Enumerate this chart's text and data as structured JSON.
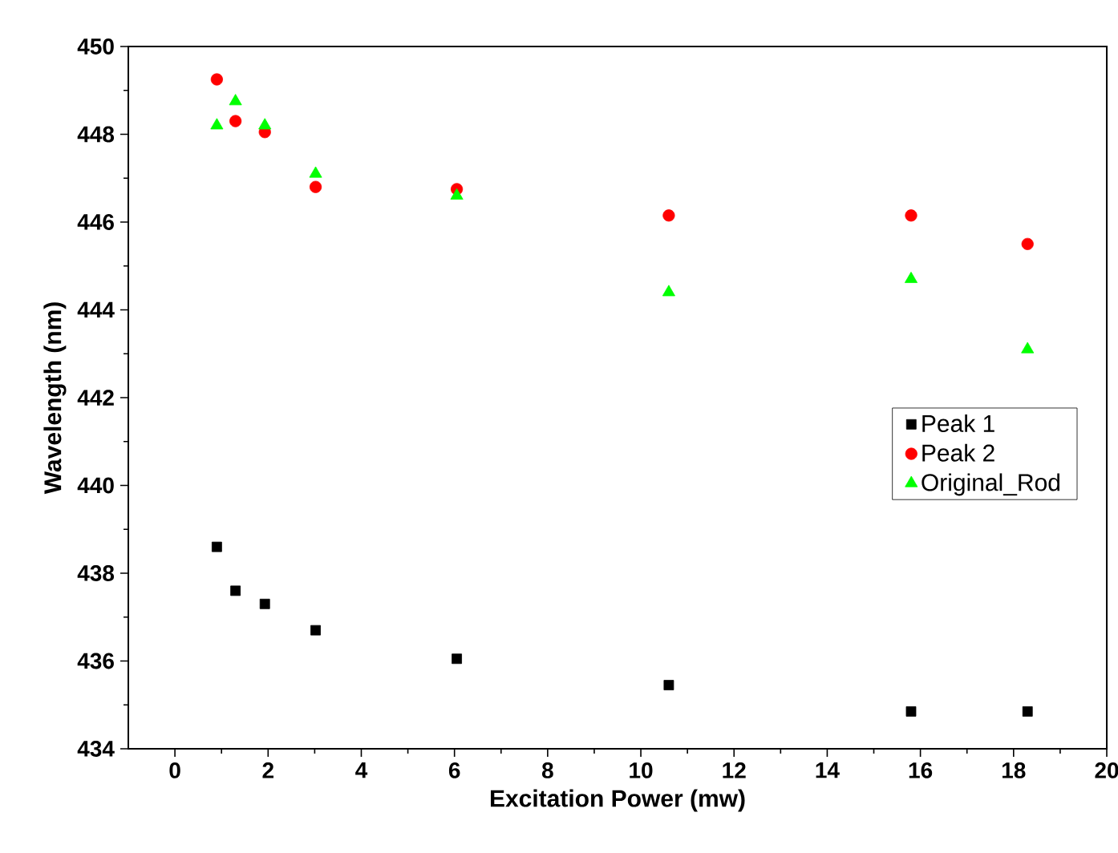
{
  "chart_data": {
    "type": "scatter",
    "xlabel": "Excitation Power (mw)",
    "ylabel": "Wavelength (nm)",
    "xlim": [
      -1,
      20
    ],
    "ylim": [
      434,
      450
    ],
    "xticks": [
      0,
      2,
      4,
      6,
      8,
      10,
      12,
      14,
      16,
      18,
      20
    ],
    "yticks": [
      434,
      436,
      438,
      440,
      442,
      444,
      446,
      448,
      450
    ],
    "x": [
      0.9,
      1.3,
      1.93,
      3.02,
      6.05,
      10.6,
      15.8,
      18.3
    ],
    "series": [
      {
        "name": "Peak 1",
        "color": "#000000",
        "marker": "square",
        "values": [
          438.6,
          437.6,
          437.3,
          436.7,
          436.05,
          435.45,
          434.85,
          434.85
        ]
      },
      {
        "name": "Peak 2",
        "color": "#ff0000",
        "marker": "circle",
        "values": [
          449.25,
          448.3,
          448.05,
          446.8,
          446.75,
          446.15,
          446.15,
          445.5
        ]
      },
      {
        "name": "Original_Rod",
        "color": "#00ff00",
        "marker": "triangle",
        "values": [
          448.2,
          448.75,
          448.2,
          447.1,
          446.6,
          444.4,
          444.7,
          443.1
        ]
      }
    ],
    "legend": "right",
    "grid": false
  }
}
